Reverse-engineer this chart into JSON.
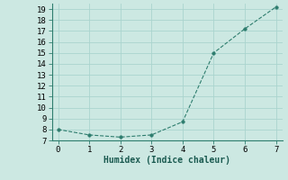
{
  "x": [
    0,
    1,
    2,
    3,
    4,
    5,
    6,
    7
  ],
  "y": [
    8.0,
    7.5,
    7.3,
    7.5,
    8.7,
    15.0,
    17.2,
    19.2
  ],
  "xlabel": "Humidex (Indice chaleur)",
  "xlim": [
    -0.2,
    7.2
  ],
  "ylim": [
    7,
    19.5
  ],
  "yticks": [
    7,
    8,
    9,
    10,
    11,
    12,
    13,
    14,
    15,
    16,
    17,
    18,
    19
  ],
  "xticks": [
    0,
    1,
    2,
    3,
    4,
    5,
    6,
    7
  ],
  "line_color": "#2e7d6e",
  "marker_color": "#2e7d6e",
  "bg_color": "#cce8e2",
  "grid_color": "#aad4ce",
  "xlabel_fontsize": 7,
  "tick_fontsize": 6.5
}
